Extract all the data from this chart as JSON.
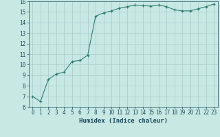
{
  "x": [
    0,
    1,
    2,
    3,
    4,
    5,
    6,
    7,
    8,
    9,
    10,
    11,
    12,
    13,
    14,
    15,
    16,
    17,
    18,
    19,
    20,
    21,
    22,
    23
  ],
  "y": [
    7.0,
    6.5,
    8.6,
    9.1,
    9.3,
    10.3,
    10.4,
    10.9,
    14.6,
    14.9,
    15.1,
    15.35,
    15.5,
    15.65,
    15.6,
    15.55,
    15.65,
    15.5,
    15.2,
    15.1,
    15.1,
    15.3,
    15.5,
    15.75
  ],
  "line_color": "#2e7d6e",
  "marker": "+",
  "bg_color": "#c8e8e4",
  "grid_color": "#a8ccc8",
  "xlabel": "Humidex (Indice chaleur)",
  "ylim": [
    6,
    16
  ],
  "xlim": [
    -0.5,
    23.5
  ],
  "yticks": [
    6,
    7,
    8,
    9,
    10,
    11,
    12,
    13,
    14,
    15,
    16
  ],
  "xticks": [
    0,
    1,
    2,
    3,
    4,
    5,
    6,
    7,
    8,
    9,
    10,
    11,
    12,
    13,
    14,
    15,
    16,
    17,
    18,
    19,
    20,
    21,
    22,
    23
  ],
  "tick_color": "#1a4a5a",
  "label_fontsize": 6.5,
  "tick_fontsize": 5.5
}
